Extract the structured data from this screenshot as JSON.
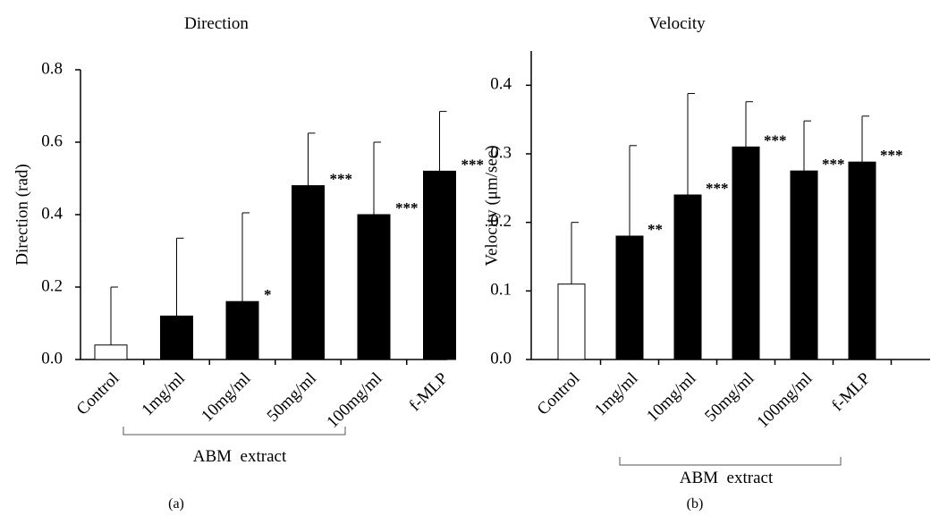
{
  "chart_data": [
    {
      "type": "bar",
      "title": "Direction",
      "ylabel": "Direction (rad)",
      "ylim": [
        0,
        0.8
      ],
      "yticks": [
        "0.0",
        "0.2",
        "0.4",
        "0.6",
        "0.8"
      ],
      "categories": [
        "Control",
        "1mg/ml",
        "10mg/ml",
        "50mg/ml",
        "100mg/ml",
        "f-MLP"
      ],
      "values": [
        0.04,
        0.12,
        0.16,
        0.48,
        0.4,
        0.52
      ],
      "errors": [
        0.16,
        0.215,
        0.245,
        0.145,
        0.2,
        0.165
      ],
      "significance": [
        "",
        "",
        "*",
        "***",
        "***",
        "***"
      ],
      "bar_colors": [
        "#ffffff",
        "#000000",
        "#000000",
        "#000000",
        "#000000",
        "#000000"
      ],
      "group_label": "ABM  extract",
      "panel_label": "(a)",
      "grid": false
    },
    {
      "type": "bar",
      "title": "Velocity",
      "ylabel": "Velocity (μm/sec)",
      "ylim": [
        0,
        0.45
      ],
      "yticks": [
        "0.0",
        "0.1",
        "0.2",
        "0.3",
        "0.4"
      ],
      "categories": [
        "Control",
        "1mg/ml",
        "10mg/ml",
        "50mg/ml",
        "100mg/ml",
        "f-MLP"
      ],
      "values": [
        0.11,
        0.18,
        0.24,
        0.31,
        0.275,
        0.288
      ],
      "errors": [
        0.09,
        0.132,
        0.148,
        0.066,
        0.073,
        0.067
      ],
      "significance": [
        "",
        "**",
        "***",
        "***",
        "***",
        "***"
      ],
      "bar_colors": [
        "#ffffff",
        "#000000",
        "#000000",
        "#000000",
        "#000000",
        "#000000"
      ],
      "group_label": "ABM  extract",
      "panel_label": "(b)",
      "grid": false
    }
  ]
}
